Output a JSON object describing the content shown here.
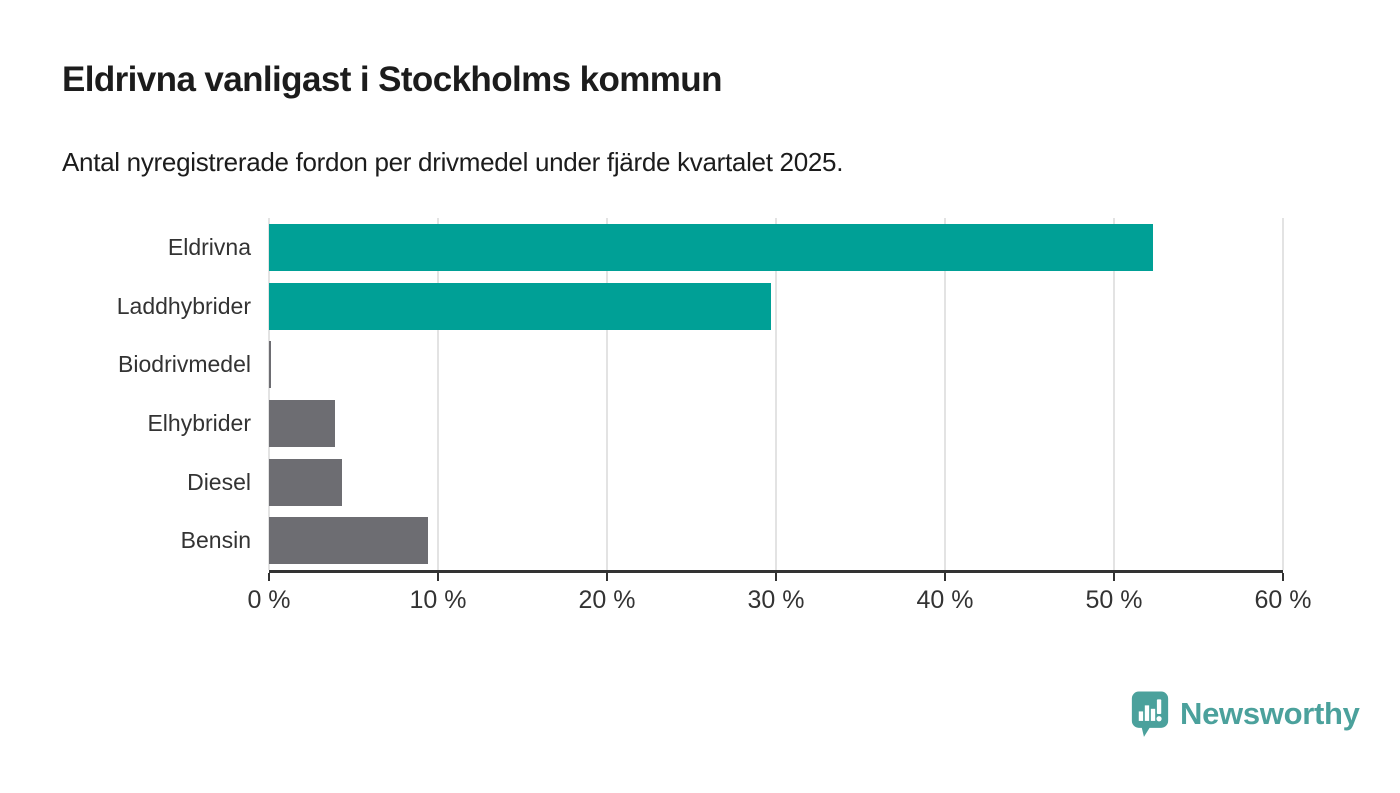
{
  "header": {
    "title": "Eldrivna vanligast i Stockholms kommun",
    "subtitle": "Antal nyregistrerade fordon per drivmedel under fjärde kvartalet 2025."
  },
  "chart_data": {
    "type": "bar",
    "orientation": "horizontal",
    "title": "Eldrivna vanligast i Stockholms kommun",
    "subtitle": "Antal nyregistrerade fordon per drivmedel under fjärde kvartalet 2025.",
    "categories": [
      "Eldrivna",
      "Laddhybrider",
      "Biodrivmedel",
      "Elhybrider",
      "Diesel",
      "Bensin"
    ],
    "values": [
      52.3,
      29.7,
      0.1,
      3.9,
      4.3,
      9.4
    ],
    "unit": "%",
    "xlim": [
      0,
      60
    ],
    "x_ticks": [
      {
        "value": 0,
        "label": "0 %"
      },
      {
        "value": 10,
        "label": "10 %"
      },
      {
        "value": 20,
        "label": "20 %"
      },
      {
        "value": 30,
        "label": "30 %"
      },
      {
        "value": 40,
        "label": "40 %"
      },
      {
        "value": 50,
        "label": "50 %"
      },
      {
        "value": 60,
        "label": "60 %"
      }
    ],
    "bar_colors": [
      "#00a096",
      "#00a096",
      "#6d6d72",
      "#6d6d72",
      "#6d6d72",
      "#6d6d72"
    ],
    "grid": true,
    "gridline_color": "#e3e3e3",
    "axis_color": "#333333",
    "value_labels_shown": false
  },
  "footer": {
    "brand": "Newsworthy",
    "brand_color": "#4ba19c"
  }
}
